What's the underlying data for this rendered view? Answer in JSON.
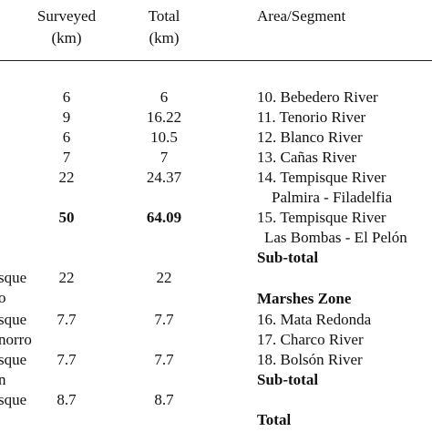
{
  "header": {
    "surveyed_line1": "Surveyed",
    "surveyed_line2": "(km)",
    "total_line1": "Total",
    "total_line2": "(km)",
    "area": "Area/Segment"
  },
  "left_fragments": {
    "r1": "sque",
    "r2": "o",
    "r3": "sque",
    "r4": "norro",
    "r5": "sque",
    "r6": "n",
    "r7": "sque"
  },
  "rows_left": [
    {
      "surveyed": "6",
      "total": "6"
    },
    {
      "surveyed": "9",
      "total": "16.22"
    },
    {
      "surveyed": "6",
      "total": "10.5"
    },
    {
      "surveyed": "7",
      "total": "7"
    },
    {
      "surveyed": "22",
      "total": "24.37"
    },
    {
      "surveyed": "50",
      "total": "64.09"
    },
    {
      "surveyed": "22",
      "total": "22"
    },
    {
      "surveyed": "7.7",
      "total": "7.7"
    },
    {
      "surveyed": "7.7",
      "total": "7.7"
    },
    {
      "surveyed": "8.7",
      "total": "8.7"
    }
  ],
  "right": {
    "r1": "10. Bebedero River",
    "r2": "11. Tenorio River",
    "r3": "12. Blanco River",
    "r4": "13. Cañas River",
    "r5": "14. Tempisque River",
    "r5b": "Palmira - Filadelfia",
    "r6": "15. Tempisque River",
    "r6b": "Las Bombas - El Pelón",
    "subtotal1": "Sub-total",
    "marshes": "Marshes Zone",
    "r7": "16. Mata Redonda",
    "r8": "17. Charco River",
    "r9": "18. Bolsón River",
    "subtotal2": "Sub-total",
    "total": "Total"
  }
}
